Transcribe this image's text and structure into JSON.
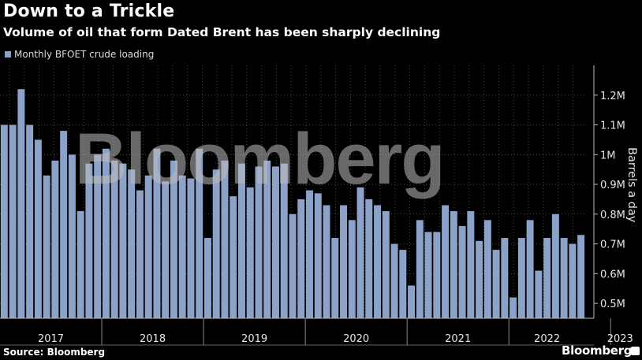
{
  "header": {
    "title": "Down to a Trickle",
    "subtitle": "Volume of oil that form Dated Brent has been sharply declining"
  },
  "legend": {
    "label": "Monthly BFOET crude loading",
    "color": "#8da2c8"
  },
  "footer": {
    "source": "Source: Bloomberg",
    "brand": "Bloomberg"
  },
  "watermark": "Bloomberg",
  "chart_data": {
    "type": "bar",
    "title": "Down to a Trickle",
    "subtitle": "Volume of oil that form Dated Brent has been sharply declining",
    "ylabel": "Barrels a day",
    "ylim": [
      0.45,
      1.3
    ],
    "yticks": [
      0.5,
      0.6,
      0.7,
      0.8,
      0.9,
      1.0,
      1.1,
      1.2
    ],
    "ytick_labels": [
      "0.5M",
      "0.6M",
      "0.7M",
      "0.8M",
      "0.9M",
      "1M",
      "1.1M",
      "1.2M"
    ],
    "y_axis_side": "right",
    "xtick_labels": [
      "2017",
      "2018",
      "2019",
      "2020",
      "2021",
      "2022",
      "2023"
    ],
    "year_start_index": [
      0,
      12,
      24,
      36,
      48,
      60,
      72
    ],
    "grid": true,
    "legend_position": "top-left",
    "series": [
      {
        "name": "Monthly BFOET crude loading",
        "color": "#8da2c8",
        "values": [
          1.1,
          1.1,
          1.22,
          1.1,
          1.05,
          0.93,
          0.98,
          1.08,
          1.0,
          0.81,
          0.97,
          1.0,
          1.02,
          0.98,
          0.97,
          0.95,
          0.88,
          0.93,
          1.02,
          0.91,
          0.98,
          0.93,
          0.92,
          1.02,
          0.72,
          0.95,
          0.98,
          0.86,
          0.97,
          0.89,
          0.96,
          0.98,
          0.96,
          0.97,
          0.8,
          0.85,
          0.88,
          0.87,
          0.83,
          0.72,
          0.83,
          0.78,
          0.89,
          0.85,
          0.83,
          0.81,
          0.7,
          0.68,
          0.56,
          0.78,
          0.74,
          0.74,
          0.83,
          0.81,
          0.76,
          0.81,
          0.71,
          0.78,
          0.68,
          0.72,
          0.52,
          0.72,
          0.78,
          0.61,
          0.72,
          0.8,
          0.72,
          0.7,
          0.73
        ]
      }
    ]
  }
}
